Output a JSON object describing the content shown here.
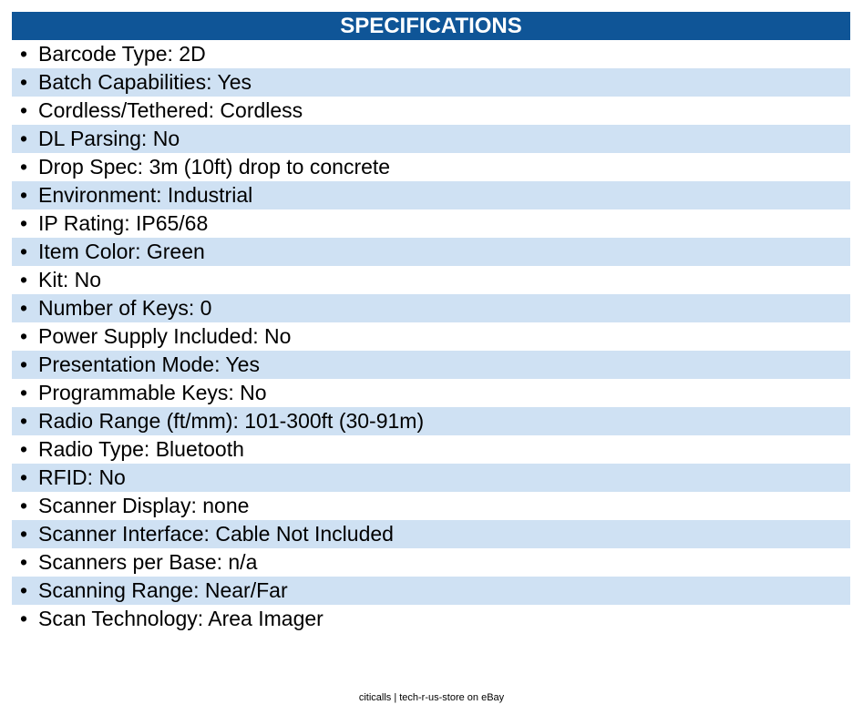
{
  "header": {
    "title": "SPECIFICATIONS"
  },
  "specs": [
    "Barcode Type: 2D",
    "Batch Capabilities: Yes",
    "Cordless/Tethered: Cordless",
    "DL Parsing: No",
    "Drop Spec: 3m (10ft) drop to concrete",
    "Environment: Industrial",
    "IP Rating: IP65/68",
    "Item Color: Green",
    "Kit: No",
    "Number of Keys: 0",
    "Power Supply Included: No",
    "Presentation Mode: Yes",
    "Programmable Keys: No",
    "Radio Range (ft/mm): 101-300ft (30-91m)",
    "Radio Type: Bluetooth",
    "RFID: No",
    "Scanner Display: none",
    "Scanner Interface: Cable Not Included",
    "Scanners per Base: n/a",
    "Scanning Range: Near/Far",
    "Scan Technology: Area Imager"
  ],
  "footer": {
    "text": "citicalls | tech-r-us-store on eBay"
  },
  "colors": {
    "header_bg": "#0f5597",
    "stripe_bg": "#cfe1f3",
    "text": "#000000"
  }
}
